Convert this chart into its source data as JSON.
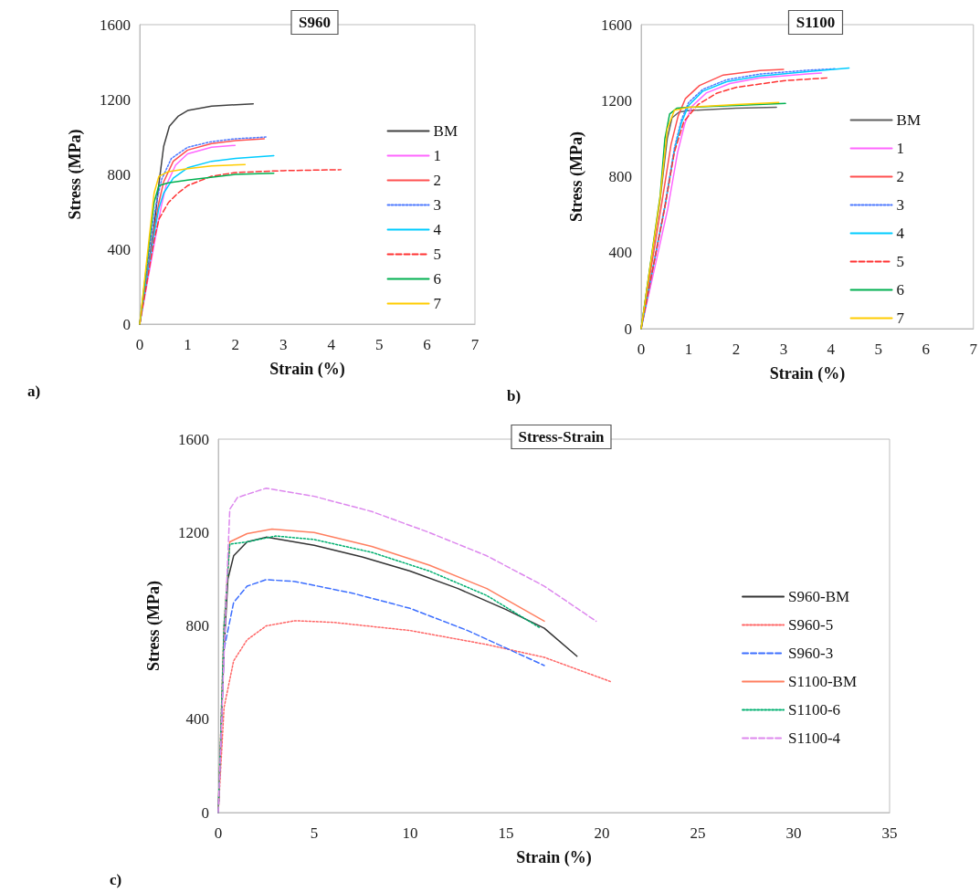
{
  "chart_data": [
    {
      "type": "line",
      "title": "S960",
      "xlabel": "Strain (%)",
      "ylabel": "Stress (MPa)",
      "annotations": [
        "a)"
      ],
      "xlim": [
        0,
        7
      ],
      "xticks": [
        0,
        1,
        2,
        3,
        4,
        5,
        6,
        7
      ],
      "ylim": [
        0,
        1600
      ],
      "yticks": [
        0,
        400,
        800,
        1200,
        1600
      ],
      "grid": false,
      "legend": "right",
      "marker": "none",
      "series": [
        {
          "name": "BM",
          "color": "#404040",
          "line_style": "solid",
          "x": [
            0,
            0.3,
            0.4,
            0.5,
            0.62,
            0.8,
            1.0,
            1.5,
            2.37
          ],
          "values": [
            0,
            520,
            750,
            950,
            1057,
            1110,
            1141,
            1165,
            1177
          ]
        },
        {
          "name": "1",
          "color": "#ff66ff",
          "line_style": "solid",
          "x": [
            0,
            0.34,
            0.45,
            0.55,
            0.75,
            1.0,
            1.5,
            1.99
          ],
          "values": [
            0,
            480,
            630,
            740,
            850,
            910,
            945,
            955
          ]
        },
        {
          "name": "2",
          "color": "#ff5050",
          "line_style": "solid",
          "x": [
            0,
            0.3,
            0.4,
            0.5,
            0.7,
            1.0,
            1.5,
            2.0,
            2.6
          ],
          "values": [
            0,
            500,
            650,
            760,
            870,
            930,
            965,
            980,
            990
          ]
        },
        {
          "name": "3",
          "color": "#4d79ff",
          "line_style": "dotted",
          "x": [
            0,
            0.26,
            0.36,
            0.46,
            0.66,
            1.0,
            1.5,
            2.0,
            2.65
          ],
          "values": [
            0,
            510,
            665,
            775,
            885,
            945,
            975,
            990,
            1000
          ]
        },
        {
          "name": "4",
          "color": "#00ccff",
          "line_style": "solid",
          "x": [
            0,
            0.3,
            0.4,
            0.5,
            0.7,
            1.0,
            1.5,
            2.0,
            2.8
          ],
          "values": [
            0,
            480,
            620,
            700,
            780,
            835,
            870,
            885,
            900
          ]
        },
        {
          "name": "5",
          "color": "#ff3333",
          "line_style": "dashed",
          "x": [
            0,
            0.3,
            0.4,
            0.6,
            0.8,
            1.0,
            1.5,
            2.0,
            3.0,
            4.2
          ],
          "values": [
            0,
            450,
            560,
            650,
            700,
            740,
            790,
            810,
            820,
            825
          ]
        },
        {
          "name": "6",
          "color": "#00b050",
          "line_style": "solid",
          "x": [
            0,
            0.3,
            0.4,
            0.6,
            1.0,
            2.0,
            2.8
          ],
          "values": [
            0,
            650,
            740,
            755,
            770,
            800,
            806
          ]
        },
        {
          "name": "7",
          "color": "#ffcc00",
          "line_style": "solid",
          "x": [
            0,
            0.3,
            0.4,
            0.6,
            1.0,
            1.5,
            2.2
          ],
          "values": [
            0,
            700,
            790,
            815,
            830,
            845,
            853
          ]
        }
      ]
    },
    {
      "type": "line",
      "title": "S1100",
      "xlabel": "Strain (%)",
      "ylabel": "Stress (MPa)",
      "annotations": [
        "b)"
      ],
      "xlim": [
        0,
        7
      ],
      "xticks": [
        0,
        1,
        2,
        3,
        4,
        5,
        6,
        7
      ],
      "ylim": [
        0,
        1600
      ],
      "yticks": [
        0,
        400,
        800,
        1200,
        1600
      ],
      "grid": false,
      "legend": "right",
      "marker": "none",
      "series": [
        {
          "name": "BM",
          "color": "#606060",
          "line_style": "solid",
          "x": [
            0,
            0.4,
            0.55,
            0.65,
            0.8,
            1.0,
            2.0,
            2.85
          ],
          "values": [
            0,
            680,
            1000,
            1110,
            1140,
            1148,
            1160,
            1165
          ]
        },
        {
          "name": "1",
          "color": "#ff66ff",
          "line_style": "solid",
          "x": [
            0,
            0.56,
            0.77,
            0.92,
            1.07,
            1.37,
            1.87,
            2.5,
            3.5,
            3.8
          ],
          "values": [
            0,
            630,
            930,
            1080,
            1170,
            1240,
            1290,
            1320,
            1340,
            1345
          ]
        },
        {
          "name": "2",
          "color": "#ff5050",
          "line_style": "solid",
          "x": [
            0,
            0.44,
            0.63,
            0.78,
            0.93,
            1.23,
            1.73,
            2.5,
            3.0
          ],
          "values": [
            0,
            670,
            970,
            1120,
            1210,
            1280,
            1335,
            1358,
            1365
          ]
        },
        {
          "name": "3",
          "color": "#4d79ff",
          "line_style": "dotted",
          "x": [
            0,
            0.5,
            0.7,
            0.85,
            1.0,
            1.3,
            1.8,
            2.5,
            3.5,
            4.1
          ],
          "values": [
            0,
            650,
            950,
            1100,
            1190,
            1260,
            1310,
            1340,
            1360,
            1368
          ]
        },
        {
          "name": "4",
          "color": "#00ccff",
          "line_style": "solid",
          "x": [
            0,
            0.5,
            0.7,
            0.85,
            1.0,
            1.3,
            1.8,
            2.5,
            3.5,
            4.38
          ],
          "values": [
            0,
            640,
            935,
            1085,
            1175,
            1250,
            1300,
            1330,
            1352,
            1372
          ]
        },
        {
          "name": "5",
          "color": "#ff3333",
          "line_style": "dashed",
          "x": [
            0,
            0.5,
            0.7,
            0.9,
            1.2,
            1.6,
            2.0,
            3.0,
            3.94
          ],
          "values": [
            0,
            640,
            930,
            1090,
            1180,
            1240,
            1270,
            1305,
            1320
          ]
        },
        {
          "name": "6",
          "color": "#00b050",
          "line_style": "solid",
          "x": [
            0,
            0.4,
            0.5,
            0.6,
            0.75,
            1.0,
            2.0,
            3.04
          ],
          "values": [
            0,
            700,
            1000,
            1130,
            1160,
            1165,
            1175,
            1185
          ]
        },
        {
          "name": "7",
          "color": "#ffcc00",
          "line_style": "solid",
          "x": [
            0,
            0.4,
            0.55,
            0.7,
            1.0,
            2.0,
            2.9
          ],
          "values": [
            0,
            690,
            1050,
            1150,
            1165,
            1180,
            1190
          ]
        }
      ]
    },
    {
      "type": "line",
      "title": "Stress-Strain",
      "xlabel": "Strain (%)",
      "ylabel": "Stress (MPa)",
      "annotations": [
        "c)"
      ],
      "xlim": [
        0,
        35
      ],
      "xticks": [
        0,
        5,
        10,
        15,
        20,
        25,
        30,
        35
      ],
      "ylim": [
        0,
        1600
      ],
      "yticks": [
        0,
        400,
        800,
        1200,
        1600
      ],
      "grid": false,
      "legend": "right",
      "marker": "none",
      "series": [
        {
          "name": "S960-BM",
          "color": "#333333",
          "line_style": "solid",
          "x": [
            0,
            0.3,
            0.5,
            0.8,
            1.5,
            2.5,
            5,
            7.5,
            10,
            12.5,
            15,
            17,
            18.7
          ],
          "values": [
            0,
            700,
            1000,
            1100,
            1160,
            1180,
            1145,
            1095,
            1035,
            960,
            870,
            790,
            670
          ]
        },
        {
          "name": "S960-5",
          "color": "#ff6666",
          "line_style": "dotted",
          "x": [
            0,
            0.3,
            0.8,
            1.5,
            2.5,
            4,
            6,
            10,
            14,
            17,
            20.5
          ],
          "values": [
            0,
            450,
            650,
            740,
            800,
            822,
            815,
            780,
            720,
            665,
            560
          ]
        },
        {
          "name": "S960-3",
          "color": "#3d6fff",
          "line_style": "dashed",
          "x": [
            0,
            0.3,
            0.8,
            1.5,
            2.5,
            4,
            7,
            10,
            13,
            15,
            17
          ],
          "values": [
            0,
            700,
            900,
            970,
            998,
            990,
            940,
            875,
            780,
            705,
            630
          ]
        },
        {
          "name": "S1100-BM",
          "color": "#ff7f60",
          "line_style": "solid",
          "x": [
            0,
            0.3,
            0.6,
            1.5,
            2.8,
            5,
            8,
            11,
            14,
            17
          ],
          "values": [
            0,
            800,
            1160,
            1195,
            1215,
            1200,
            1140,
            1060,
            960,
            820
          ]
        },
        {
          "name": "S1100-6",
          "color": "#00b070",
          "line_style": "dotted",
          "x": [
            0,
            0.3,
            0.6,
            1.5,
            3,
            5,
            8,
            11,
            14,
            16.8
          ],
          "values": [
            0,
            800,
            1150,
            1160,
            1185,
            1170,
            1115,
            1035,
            930,
            790
          ]
        },
        {
          "name": "S1100-4",
          "color": "#dd88ee",
          "line_style": "dashed",
          "x": [
            0,
            0.4,
            0.6,
            1.0,
            2.5,
            5,
            8,
            11,
            14,
            17,
            19.7
          ],
          "values": [
            0,
            900,
            1300,
            1350,
            1390,
            1355,
            1290,
            1200,
            1100,
            970,
            820
          ]
        }
      ]
    }
  ]
}
